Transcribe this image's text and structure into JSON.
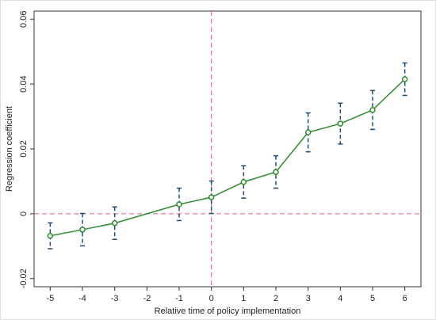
{
  "chart_data": {
    "type": "line",
    "x_label": "Relative time of policy implementation",
    "y_label": "Regression coefficient",
    "x": [
      -5,
      -4,
      -3,
      -1,
      0,
      1,
      2,
      3,
      4,
      5,
      6
    ],
    "series": [
      {
        "color": "#2e8b2e",
        "error_color": "#1f4e79",
        "values": [
          -0.0068,
          -0.0049,
          -0.0029,
          0.0029,
          0.0051,
          0.0098,
          0.0129,
          0.0251,
          0.0278,
          0.032,
          0.0415
        ],
        "errors": [
          0.004,
          0.005,
          0.005,
          0.005,
          0.005,
          0.005,
          0.005,
          0.006,
          0.0063,
          0.006,
          0.005
        ]
      }
    ],
    "xlim": [
      -5.5,
      6.5
    ],
    "xticks": [
      -5,
      -4,
      -3,
      -2,
      -1,
      0,
      1,
      2,
      3,
      4,
      5,
      6
    ],
    "ylim": [
      -0.0225,
      0.0625
    ],
    "yticks": [
      -0.02,
      0,
      0.02,
      0.04,
      0.06
    ],
    "reference_lines": {
      "x": 0,
      "y": 0,
      "color": "#e06070"
    }
  }
}
